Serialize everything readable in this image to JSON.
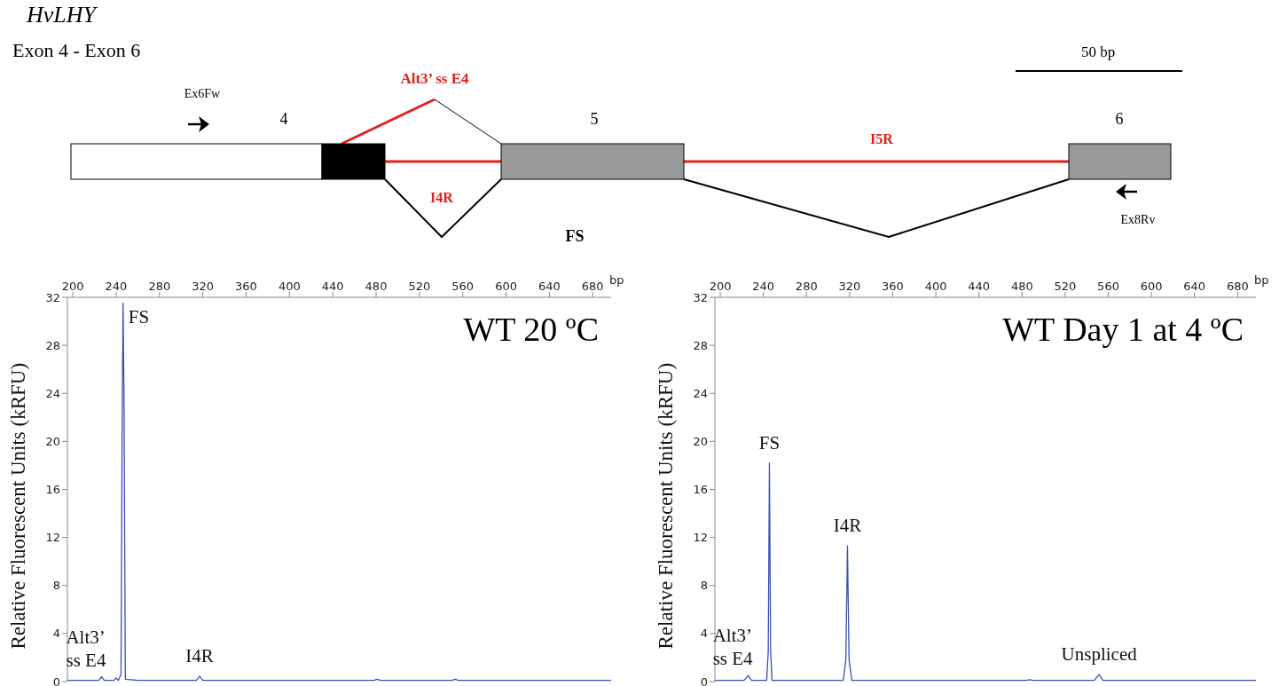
{
  "chart_data": [
    {
      "type": "other",
      "title": "HvLHY",
      "subtitle": "Exon 4 - Exon 6",
      "annotations": [
        "Ex6Fw",
        "4",
        "Alt3’ ss E4",
        "5",
        "I4R",
        "I5R",
        "6",
        "FS",
        "Ex8Rv",
        "50 bp"
      ]
    },
    {
      "type": "line",
      "title": "WT 20 ºC",
      "xlabel": "bp",
      "ylabel": "Relative Fluorescent Units (kRFU)",
      "xlim": [
        195,
        697
      ],
      "xticks": [
        200,
        240,
        280,
        320,
        360,
        400,
        440,
        480,
        520,
        560,
        600,
        640,
        680
      ],
      "ylim": [
        0,
        32
      ],
      "yticks": [
        0,
        4,
        8,
        12,
        16,
        20,
        24,
        28,
        32
      ],
      "grid": false,
      "legend": false,
      "marker": "none",
      "line_style": "solid",
      "series": [
        {
          "color": "#3a50b4",
          "x": [
            195,
            210,
            224,
            226.5,
            229,
            238,
            240,
            242,
            244.5,
            245.5,
            246.4,
            247.3,
            248.5,
            260,
            300,
            314,
            317,
            320,
            360,
            478,
            481,
            484,
            550,
            553,
            556,
            697
          ],
          "values": [
            0.1,
            0.1,
            0.1,
            0.4,
            0.1,
            0.1,
            0.3,
            0.1,
            0.6,
            20.6,
            31.5,
            23.2,
            0.2,
            0.1,
            0.1,
            0.1,
            0.45,
            0.1,
            0.1,
            0.1,
            0.2,
            0.1,
            0.1,
            0.2,
            0.1,
            0.1
          ]
        }
      ],
      "annotations": [
        {
          "text": "FS",
          "x": 246.4,
          "y": 31.5
        },
        {
          "text": "Alt3’ ss E4",
          "x": 226.5,
          "y": 0.4
        },
        {
          "text": "I4R",
          "x": 317,
          "y": 0.45
        }
      ]
    },
    {
      "type": "line",
      "title": "WT Day 1 at 4 ºC",
      "xlabel": "bp",
      "ylabel": "Relative Fluorescent Units (kRFU)",
      "xlim": [
        195,
        697
      ],
      "xticks": [
        200,
        240,
        280,
        320,
        360,
        400,
        440,
        480,
        520,
        560,
        600,
        640,
        680
      ],
      "ylim": [
        0,
        32
      ],
      "yticks": [
        0,
        4,
        8,
        12,
        16,
        20,
        24,
        28,
        32
      ],
      "grid": false,
      "legend": false,
      "marker": "none",
      "line_style": "solid",
      "series": [
        {
          "color": "#3a50b4",
          "x": [
            195,
            222,
            226,
            229,
            243,
            244.5,
            245.6,
            246.7,
            248,
            280,
            314,
            316.5,
            318,
            319.5,
            322,
            360,
            484,
            487,
            490,
            547,
            551.5,
            555,
            697
          ],
          "values": [
            0.1,
            0.1,
            0.5,
            0.1,
            0.1,
            2.5,
            18.2,
            2.5,
            0.1,
            0.1,
            0.1,
            1.8,
            11.3,
            1.8,
            0.1,
            0.1,
            0.1,
            0.15,
            0.1,
            0.1,
            0.6,
            0.1,
            0.1
          ]
        }
      ],
      "annotations": [
        {
          "text": "FS",
          "x": 245.6,
          "y": 18.2
        },
        {
          "text": "Alt3’ ss E4",
          "x": 226,
          "y": 0.5
        },
        {
          "text": "I4R",
          "x": 318,
          "y": 11.3
        },
        {
          "text": "Unspliced",
          "x": 551.5,
          "y": 0.6
        }
      ]
    }
  ]
}
